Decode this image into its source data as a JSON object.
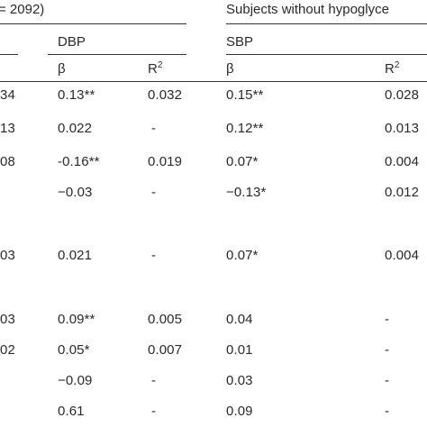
{
  "table": {
    "group1_header": "= 2092)",
    "group2_header": "Subjects without hypoglyce",
    "group1_sub": "DBP",
    "group2_sub": "SBP",
    "col_beta": "β",
    "col_r": "R",
    "col_r_sup": "2",
    "rows": [
      {
        "clip": "34",
        "dbp_beta": "0.13**",
        "dbp_r2": "0.032",
        "sbp_beta": "0.15**",
        "sbp_r2": "0.028"
      },
      {
        "clip": "13",
        "dbp_beta": "0.022",
        "dbp_r2": "-",
        "sbp_beta": "0.12**",
        "sbp_r2": "0.013"
      },
      {
        "clip": "08",
        "dbp_beta": "-0.16**",
        "dbp_r2": "0.019",
        "sbp_beta": "0.07*",
        "sbp_r2": "0.004"
      },
      {
        "clip": "",
        "dbp_beta": "−0.03",
        "dbp_r2": "-",
        "sbp_beta": "−0.13*",
        "sbp_r2": "0.012"
      },
      {
        "clip": "03",
        "dbp_beta": "0.021",
        "dbp_r2": "-",
        "sbp_beta": "0.07*",
        "sbp_r2": "0.004"
      },
      {
        "clip": "03",
        "dbp_beta": "0.09**",
        "dbp_r2": "0.005",
        "sbp_beta": "0.04",
        "sbp_r2": "-"
      },
      {
        "clip": "02",
        "dbp_beta": "0.05*",
        "dbp_r2": "0.007",
        "sbp_beta": "0.01",
        "sbp_r2": "-"
      },
      {
        "clip": "",
        "dbp_beta": "−0.09",
        "dbp_r2": "-",
        "sbp_beta": "0.03",
        "sbp_r2": "-"
      },
      {
        "clip": "",
        "dbp_beta": "0.61",
        "dbp_r2": "-",
        "sbp_beta": "0.09",
        "sbp_r2": "-"
      }
    ]
  }
}
